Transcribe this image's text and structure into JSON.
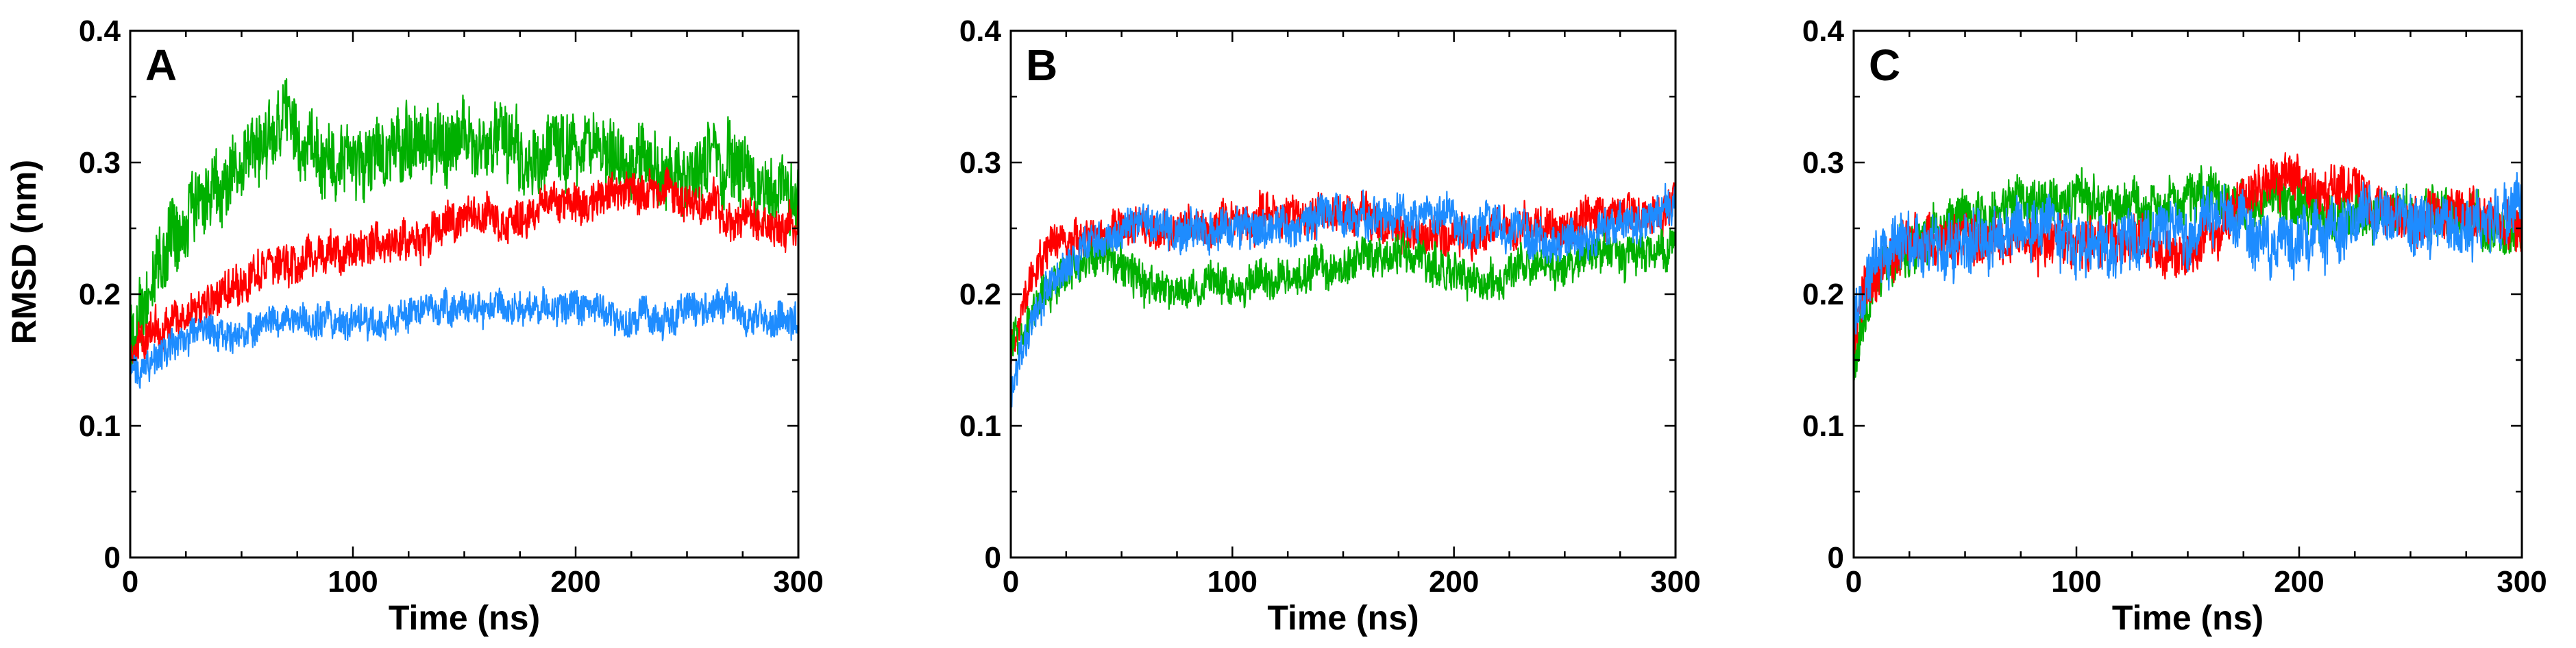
{
  "chart_data": [
    {
      "type": "line",
      "panel_label": "A",
      "xlabel": "Time (ns)",
      "ylabel": "RMSD (nm)",
      "xlim": [
        0,
        300
      ],
      "ylim": [
        0,
        0.4
      ],
      "x_ticks": [
        0,
        100,
        200,
        300
      ],
      "x_tick_labels": [
        "0",
        "100",
        "200",
        "300"
      ],
      "y_ticks": [
        0,
        0.1,
        0.2,
        0.3,
        0.4
      ],
      "y_tick_labels": [
        "0",
        "0.1",
        "0.2",
        "0.3",
        "0.4"
      ],
      "series": [
        {
          "name": "green",
          "color": "#00b000",
          "x": [
            0,
            10,
            20,
            30,
            40,
            50,
            60,
            70,
            80,
            90,
            100,
            110,
            120,
            130,
            140,
            150,
            160,
            170,
            180,
            190,
            200,
            210,
            220,
            230,
            240,
            250,
            260,
            270,
            280,
            290,
            300
          ],
          "y": [
            0.16,
            0.21,
            0.25,
            0.27,
            0.28,
            0.3,
            0.32,
            0.33,
            0.31,
            0.3,
            0.3,
            0.3,
            0.31,
            0.31,
            0.32,
            0.32,
            0.32,
            0.31,
            0.3,
            0.31,
            0.31,
            0.3,
            0.3,
            0.3,
            0.29,
            0.29,
            0.3,
            0.3,
            0.29,
            0.28,
            0.28
          ],
          "noise": 0.022
        },
        {
          "name": "red",
          "color": "#ff0000",
          "x": [
            0,
            10,
            20,
            30,
            40,
            50,
            60,
            70,
            80,
            90,
            100,
            110,
            120,
            130,
            140,
            150,
            160,
            170,
            180,
            190,
            200,
            210,
            220,
            230,
            240,
            250,
            260,
            270,
            280,
            290,
            300
          ],
          "y": [
            0.16,
            0.17,
            0.18,
            0.19,
            0.2,
            0.21,
            0.22,
            0.22,
            0.23,
            0.23,
            0.23,
            0.24,
            0.24,
            0.24,
            0.25,
            0.26,
            0.26,
            0.25,
            0.26,
            0.27,
            0.27,
            0.27,
            0.28,
            0.28,
            0.28,
            0.27,
            0.27,
            0.26,
            0.26,
            0.25,
            0.25
          ],
          "noise": 0.012
        },
        {
          "name": "blue",
          "color": "#1e8cff",
          "x": [
            0,
            10,
            20,
            30,
            40,
            50,
            60,
            70,
            80,
            90,
            100,
            110,
            120,
            130,
            140,
            150,
            160,
            170,
            180,
            190,
            200,
            210,
            220,
            230,
            240,
            250,
            260,
            270,
            280,
            290,
            300
          ],
          "y": [
            0.14,
            0.15,
            0.16,
            0.17,
            0.17,
            0.17,
            0.18,
            0.18,
            0.18,
            0.18,
            0.18,
            0.18,
            0.18,
            0.19,
            0.19,
            0.19,
            0.19,
            0.19,
            0.19,
            0.19,
            0.19,
            0.19,
            0.18,
            0.18,
            0.18,
            0.19,
            0.19,
            0.19,
            0.18,
            0.18,
            0.18
          ],
          "noise": 0.01
        }
      ]
    },
    {
      "type": "line",
      "panel_label": "B",
      "xlabel": "Time (ns)",
      "ylabel": "",
      "xlim": [
        0,
        300
      ],
      "ylim": [
        0,
        0.4
      ],
      "x_ticks": [
        0,
        100,
        200,
        300
      ],
      "x_tick_labels": [
        "0",
        "100",
        "200",
        "300"
      ],
      "y_ticks": [
        0,
        0.1,
        0.2,
        0.3,
        0.4
      ],
      "y_tick_labels": [
        "0",
        "0.1",
        "0.2",
        "0.3",
        "0.4"
      ],
      "series": [
        {
          "name": "red",
          "color": "#ff0000",
          "x": [
            0,
            10,
            20,
            30,
            40,
            50,
            60,
            70,
            80,
            90,
            100,
            110,
            120,
            130,
            140,
            150,
            160,
            170,
            180,
            190,
            200,
            210,
            220,
            230,
            240,
            250,
            260,
            270,
            280,
            290,
            300
          ],
          "y": [
            0.16,
            0.22,
            0.24,
            0.24,
            0.24,
            0.25,
            0.25,
            0.25,
            0.25,
            0.25,
            0.25,
            0.26,
            0.26,
            0.26,
            0.26,
            0.26,
            0.26,
            0.25,
            0.25,
            0.24,
            0.24,
            0.24,
            0.25,
            0.25,
            0.25,
            0.25,
            0.26,
            0.26,
            0.26,
            0.26,
            0.27
          ],
          "noise": 0.012
        },
        {
          "name": "green",
          "color": "#00b000",
          "x": [
            0,
            10,
            20,
            30,
            40,
            50,
            60,
            70,
            80,
            90,
            100,
            110,
            120,
            130,
            140,
            150,
            160,
            170,
            180,
            190,
            200,
            210,
            220,
            230,
            240,
            250,
            260,
            270,
            280,
            290,
            300
          ],
          "y": [
            0.16,
            0.19,
            0.21,
            0.22,
            0.23,
            0.22,
            0.21,
            0.2,
            0.2,
            0.21,
            0.21,
            0.21,
            0.21,
            0.21,
            0.22,
            0.22,
            0.23,
            0.23,
            0.23,
            0.22,
            0.22,
            0.21,
            0.21,
            0.22,
            0.22,
            0.22,
            0.23,
            0.23,
            0.23,
            0.23,
            0.24
          ],
          "noise": 0.012
        },
        {
          "name": "blue",
          "color": "#1e8cff",
          "x": [
            0,
            10,
            20,
            30,
            40,
            50,
            60,
            70,
            80,
            90,
            100,
            110,
            120,
            130,
            140,
            150,
            160,
            170,
            180,
            190,
            200,
            210,
            220,
            230,
            240,
            250,
            260,
            270,
            280,
            290,
            300
          ],
          "y": [
            0.13,
            0.18,
            0.21,
            0.23,
            0.24,
            0.25,
            0.25,
            0.25,
            0.25,
            0.25,
            0.25,
            0.25,
            0.25,
            0.25,
            0.26,
            0.26,
            0.26,
            0.26,
            0.26,
            0.26,
            0.26,
            0.25,
            0.25,
            0.25,
            0.24,
            0.24,
            0.24,
            0.25,
            0.25,
            0.26,
            0.27
          ],
          "noise": 0.012
        }
      ]
    },
    {
      "type": "line",
      "panel_label": "C",
      "xlabel": "Time (ns)",
      "ylabel": "",
      "xlim": [
        0,
        300
      ],
      "ylim": [
        0,
        0.4
      ],
      "x_ticks": [
        0,
        100,
        200,
        300
      ],
      "x_tick_labels": [
        "0",
        "100",
        "200",
        "300"
      ],
      "y_ticks": [
        0,
        0.1,
        0.2,
        0.3,
        0.4
      ],
      "y_tick_labels": [
        "0",
        "0.1",
        "0.2",
        "0.3",
        "0.4"
      ],
      "series": [
        {
          "name": "green",
          "color": "#00b000",
          "x": [
            0,
            10,
            20,
            30,
            40,
            50,
            60,
            70,
            80,
            90,
            100,
            110,
            120,
            130,
            140,
            150,
            160,
            170,
            180,
            190,
            200,
            210,
            220,
            230,
            240,
            250,
            260,
            270,
            280,
            290,
            300
          ],
          "y": [
            0.15,
            0.21,
            0.23,
            0.24,
            0.25,
            0.26,
            0.26,
            0.27,
            0.27,
            0.27,
            0.27,
            0.27,
            0.27,
            0.27,
            0.27,
            0.27,
            0.27,
            0.27,
            0.27,
            0.27,
            0.27,
            0.26,
            0.26,
            0.26,
            0.26,
            0.26,
            0.26,
            0.26,
            0.26,
            0.25,
            0.25
          ],
          "noise": 0.015
        },
        {
          "name": "red",
          "color": "#ff0000",
          "x": [
            0,
            10,
            20,
            30,
            40,
            50,
            60,
            70,
            80,
            90,
            100,
            110,
            120,
            130,
            140,
            150,
            160,
            170,
            180,
            190,
            200,
            210,
            220,
            230,
            240,
            250,
            260,
            270,
            280,
            290,
            300
          ],
          "y": [
            0.17,
            0.22,
            0.23,
            0.24,
            0.24,
            0.24,
            0.24,
            0.24,
            0.24,
            0.24,
            0.24,
            0.24,
            0.24,
            0.24,
            0.23,
            0.23,
            0.24,
            0.26,
            0.28,
            0.29,
            0.28,
            0.28,
            0.28,
            0.27,
            0.26,
            0.26,
            0.26,
            0.26,
            0.26,
            0.26,
            0.25
          ],
          "noise": 0.015
        },
        {
          "name": "blue",
          "color": "#1e8cff",
          "x": [
            0,
            10,
            20,
            30,
            40,
            50,
            60,
            70,
            80,
            90,
            100,
            110,
            120,
            130,
            140,
            150,
            160,
            170,
            180,
            190,
            200,
            210,
            220,
            230,
            240,
            250,
            260,
            270,
            280,
            290,
            300
          ],
          "y": [
            0.18,
            0.23,
            0.24,
            0.24,
            0.24,
            0.24,
            0.25,
            0.25,
            0.25,
            0.25,
            0.24,
            0.24,
            0.24,
            0.24,
            0.25,
            0.25,
            0.26,
            0.25,
            0.24,
            0.24,
            0.24,
            0.25,
            0.25,
            0.26,
            0.26,
            0.26,
            0.25,
            0.25,
            0.25,
            0.26,
            0.27
          ],
          "noise": 0.018
        }
      ]
    }
  ]
}
